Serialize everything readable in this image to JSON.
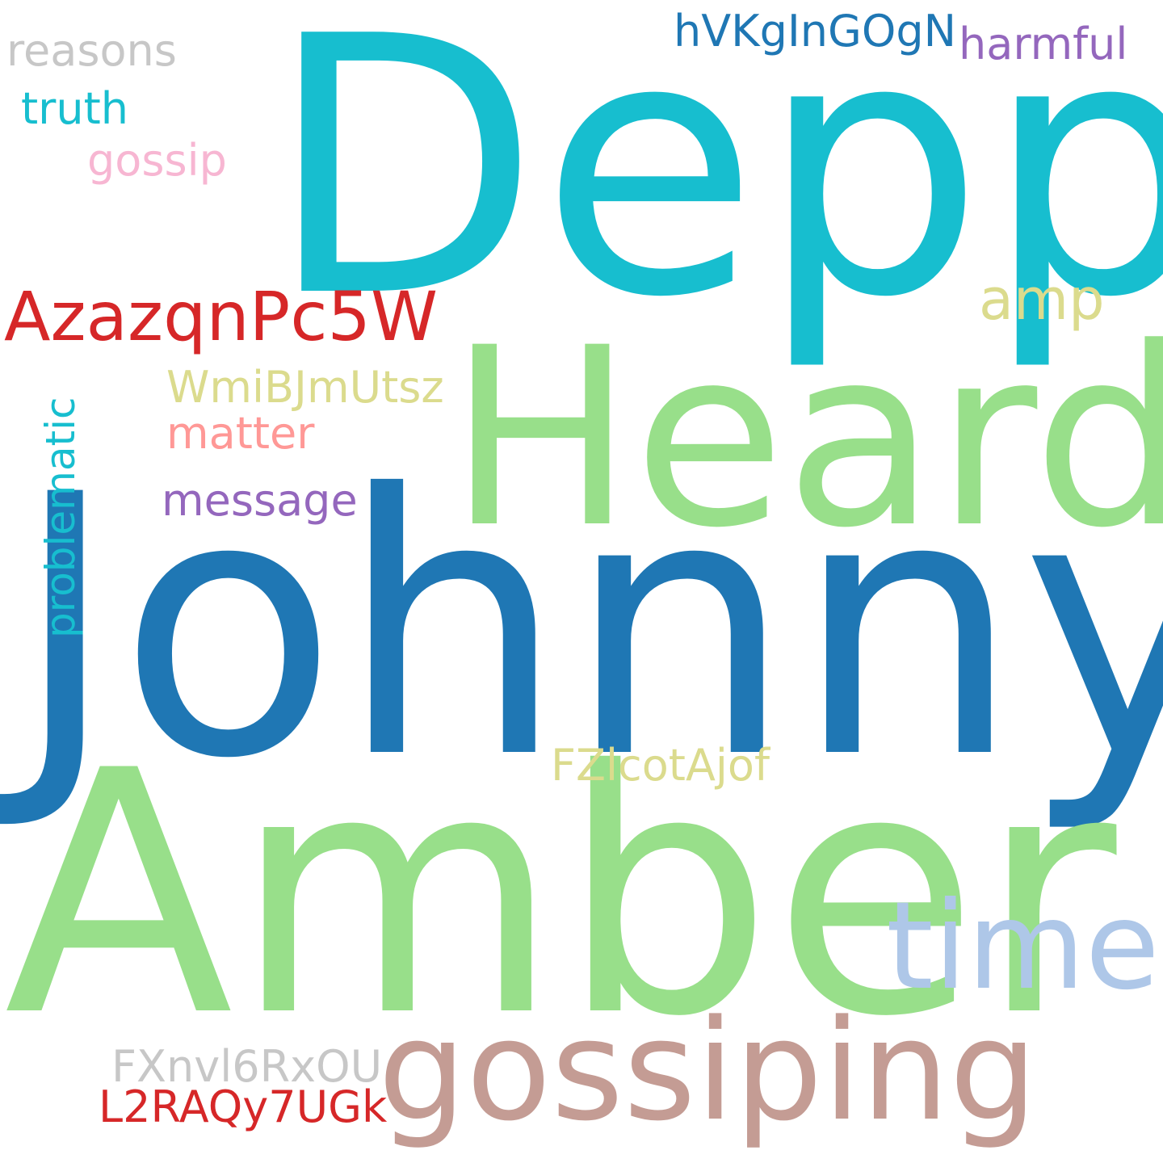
{
  "words": [
    {
      "text": "Depp",
      "color": "#17becf"
    },
    {
      "text": "Johnny",
      "color": "#1f77b4"
    },
    {
      "text": "Amber",
      "color": "#98df8a"
    },
    {
      "text": "Heard",
      "color": "#98df8a"
    },
    {
      "text": "gossiping",
      "color": "#c49c94"
    },
    {
      "text": "time",
      "color": "#aec7e8"
    },
    {
      "text": "AzazqnPc5W",
      "color": "#d62728"
    },
    {
      "text": "amp",
      "color": "#dbdb8d"
    },
    {
      "text": "hVKgInGOgN",
      "color": "#1f77b4"
    },
    {
      "text": "harmful",
      "color": "#9467bd"
    },
    {
      "text": "reasons",
      "color": "#c7c7c7"
    },
    {
      "text": "truth",
      "color": "#17becf"
    },
    {
      "text": "gossip",
      "color": "#f7b6d2"
    },
    {
      "text": "WmiBJmUtsz",
      "color": "#dbdb8d"
    },
    {
      "text": "matter",
      "color": "#ff9896"
    },
    {
      "text": "message",
      "color": "#9467bd"
    },
    {
      "text": "FZlcotAjof",
      "color": "#dbdb8d"
    },
    {
      "text": "FXnvl6RxOU",
      "color": "#c7c7c7"
    },
    {
      "text": "L2RAQy7UGk",
      "color": "#d62728"
    },
    {
      "text": "problematic",
      "color": "#17becf"
    }
  ]
}
